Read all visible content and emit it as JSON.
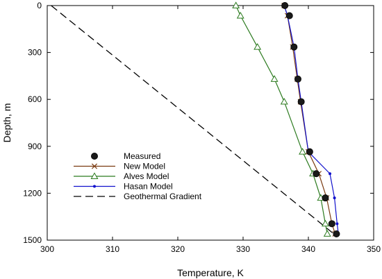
{
  "chart_data": {
    "type": "line",
    "xlabel": "Temperature, K",
    "ylabel": "Depth, m",
    "xlim": [
      300,
      350
    ],
    "ylim": [
      1500,
      0
    ],
    "xticks": [
      300,
      310,
      320,
      330,
      340,
      350
    ],
    "yticks": [
      0,
      300,
      600,
      900,
      1200,
      1500
    ],
    "legend_position": "lower-left",
    "grid": false,
    "series": [
      {
        "name": "Measured",
        "style": "markers",
        "marker": "filled-circle",
        "color": "#000000",
        "points": [
          [
            336.4,
            0
          ],
          [
            337.1,
            65
          ],
          [
            337.8,
            265
          ],
          [
            338.4,
            470
          ],
          [
            338.9,
            615
          ],
          [
            340.2,
            935
          ],
          [
            341.2,
            1075
          ],
          [
            342.6,
            1230
          ],
          [
            343.6,
            1395
          ],
          [
            344.3,
            1460
          ]
        ]
      },
      {
        "name": "New Model",
        "style": "line-markers",
        "marker": "x",
        "color": "#7a3a10",
        "points": [
          [
            336.3,
            0
          ],
          [
            336.8,
            65
          ],
          [
            337.6,
            265
          ],
          [
            338.3,
            470
          ],
          [
            338.8,
            615
          ],
          [
            340.0,
            935
          ],
          [
            341.6,
            1075
          ],
          [
            342.8,
            1230
          ],
          [
            343.6,
            1395
          ],
          [
            344.1,
            1460
          ]
        ]
      },
      {
        "name": "Alves Model",
        "style": "line-markers",
        "marker": "open-triangle",
        "color": "#2b7a1e",
        "points": [
          [
            328.9,
            0
          ],
          [
            329.6,
            65
          ],
          [
            332.2,
            265
          ],
          [
            334.8,
            470
          ],
          [
            336.3,
            615
          ],
          [
            339.1,
            935
          ],
          [
            340.7,
            1075
          ],
          [
            341.9,
            1230
          ],
          [
            342.6,
            1395
          ],
          [
            342.9,
            1460
          ]
        ]
      },
      {
        "name": "Hasan Model",
        "style": "line-markers",
        "marker": "small-dot",
        "color": "#1010cc",
        "points": [
          [
            336.3,
            0
          ],
          [
            336.8,
            65
          ],
          [
            337.8,
            265
          ],
          [
            338.4,
            470
          ],
          [
            338.9,
            615
          ],
          [
            340.0,
            935
          ],
          [
            343.3,
            1075
          ],
          [
            344.0,
            1230
          ],
          [
            344.4,
            1395
          ],
          [
            344.6,
            1460
          ]
        ]
      },
      {
        "name": "Geothermal Gradient",
        "style": "dashed-line",
        "color": "#000000",
        "points": [
          [
            300.6,
            0
          ],
          [
            343.9,
            1460
          ]
        ]
      }
    ]
  }
}
